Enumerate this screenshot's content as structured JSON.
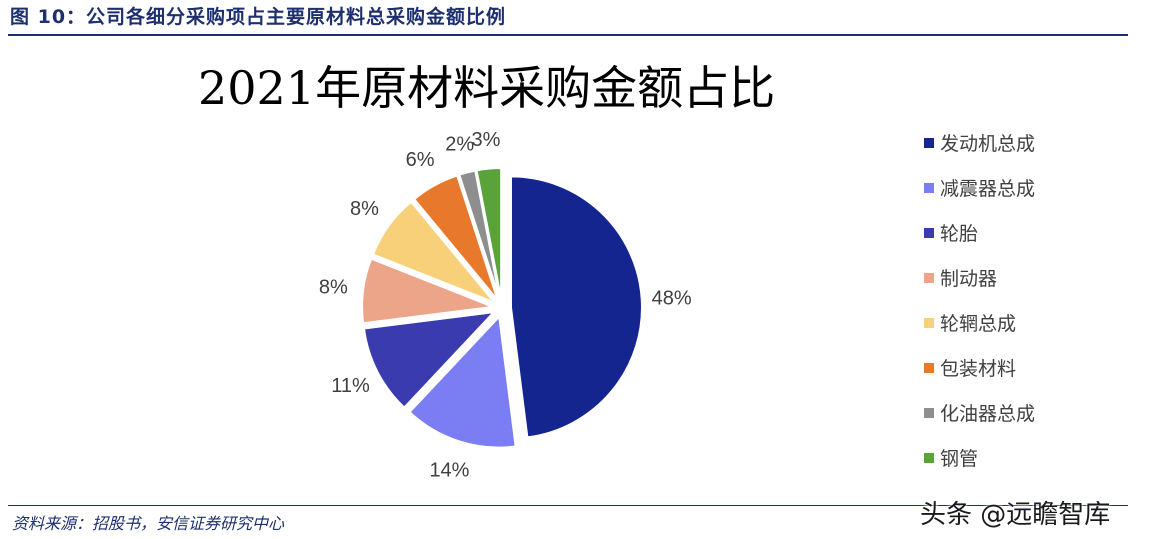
{
  "figure": {
    "caption": "图 10：公司各细分采购项占主要原材料总采购金额比例",
    "source": "资料来源：招股书，安信证券研究中心",
    "watermark": "头条 @远瞻智库"
  },
  "chart_data": {
    "type": "pie",
    "title": "2021年原材料采购金额占比",
    "categories": [
      "发动机总成",
      "减震器总成",
      "轮胎",
      "制动器",
      "轮辋总成",
      "包装材料",
      "化油器总成",
      "钢管"
    ],
    "values": [
      48,
      14,
      11,
      8,
      8,
      6,
      2,
      3
    ],
    "value_labels": [
      "48%",
      "14%",
      "11%",
      "8%",
      "8%",
      "6%",
      "2%",
      "3%"
    ],
    "colors": [
      "#14258f",
      "#7b7ef2",
      "#3b3bb0",
      "#eda58a",
      "#f8d07a",
      "#e8782c",
      "#8e8e8e",
      "#5aa23a"
    ],
    "legend_position": "right",
    "exploded": true
  }
}
